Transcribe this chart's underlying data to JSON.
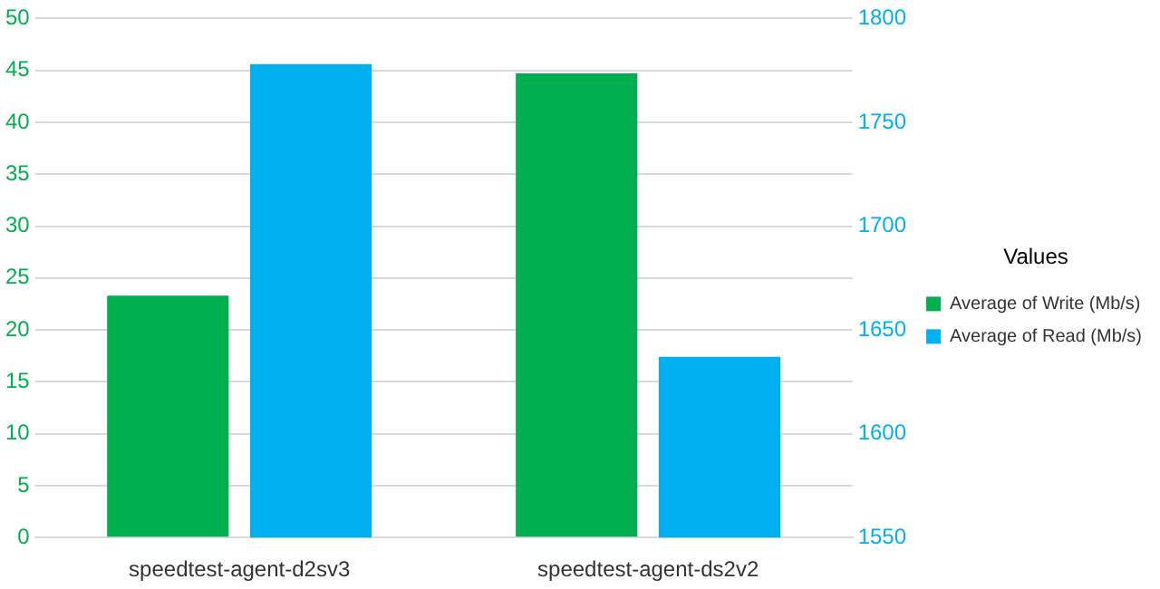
{
  "chart_data": {
    "type": "bar",
    "categories": [
      "speedtest-agent-d2sv3",
      "speedtest-agent-ds2v2"
    ],
    "series": [
      {
        "name": "Average of Write (Mb/s)",
        "color": "#00b050",
        "values": [
          23.3,
          44.7
        ]
      },
      {
        "name": "Average of Read (Mb/s)",
        "color": "#00b0f0",
        "values": [
          1778,
          1637
        ],
        "axis": "y2"
      }
    ],
    "ylim": [
      0,
      50
    ],
    "yticks": [
      0,
      5,
      10,
      15,
      20,
      25,
      30,
      35,
      40,
      45,
      50
    ],
    "y2lim": [
      1550,
      1800
    ],
    "y2ticks": [
      1550,
      1600,
      1650,
      1700,
      1750,
      1800
    ],
    "grid": "y",
    "legend": "right",
    "legend_title": "Values"
  }
}
